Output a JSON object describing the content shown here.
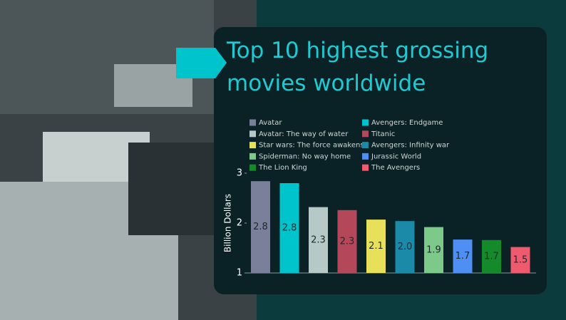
{
  "chart_data": {
    "type": "bar",
    "title": "Top 10 highest grossing movies worldwide",
    "y_label": "Billion Dollars",
    "categories": [
      "Avatar",
      "Avengers: Endgame",
      "Avatar: The way of water",
      "Titanic",
      "Star wars: The force awakens",
      "Avengers: Infinity war",
      "Spiderman: No way home",
      "Jurassic World",
      "The Lion King",
      "The Avengers"
    ],
    "values": [
      2.84,
      2.8,
      2.32,
      2.26,
      2.07,
      2.04,
      1.92,
      1.67,
      1.66,
      1.52
    ],
    "value_labels": [
      "2.8",
      "2.8",
      "2.3",
      "2.3",
      "2.1",
      "2.0",
      "1.9",
      "1.7",
      "1.7",
      "1.5"
    ],
    "colors": [
      "#7a7f9a",
      "#00c4cc",
      "#b7c9c6",
      "#b5475a",
      "#e8e05a",
      "#1a8aa8",
      "#7cc98a",
      "#4f8ef2",
      "#148a2a",
      "#f05a6e"
    ],
    "ylim": [
      1,
      3
    ],
    "yticks": [
      1,
      2,
      3
    ],
    "grid": false
  }
}
